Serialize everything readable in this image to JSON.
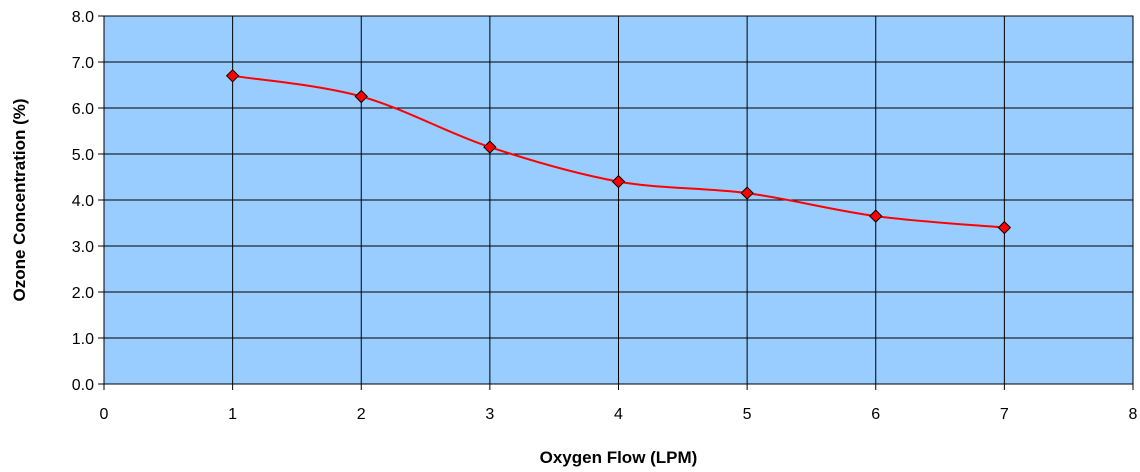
{
  "chart_data": {
    "type": "line",
    "title": "",
    "xlabel": "Oxygen Flow (LPM)",
    "ylabel": "Ozone Concentration (%)",
    "xlim": [
      0,
      8
    ],
    "ylim": [
      0,
      8
    ],
    "x_ticks": [
      "0",
      "1",
      "2",
      "3",
      "4",
      "5",
      "6",
      "7",
      "8"
    ],
    "y_ticks": [
      "0.0",
      "1.0",
      "2.0",
      "3.0",
      "4.0",
      "5.0",
      "6.0",
      "7.0",
      "8.0"
    ],
    "grid": true,
    "smoothed": true,
    "marker": "diamond",
    "series": [
      {
        "x": [
          1,
          2,
          3,
          4,
          5,
          6,
          7
        ],
        "values": [
          6.7,
          6.25,
          5.15,
          4.4,
          4.15,
          3.65,
          3.4
        ]
      }
    ],
    "colors": {
      "plot_background": "#99ccff",
      "line": "#ff0000",
      "marker_fill": "#ff0000",
      "marker_stroke": "#000000",
      "grid": "#000000"
    }
  }
}
